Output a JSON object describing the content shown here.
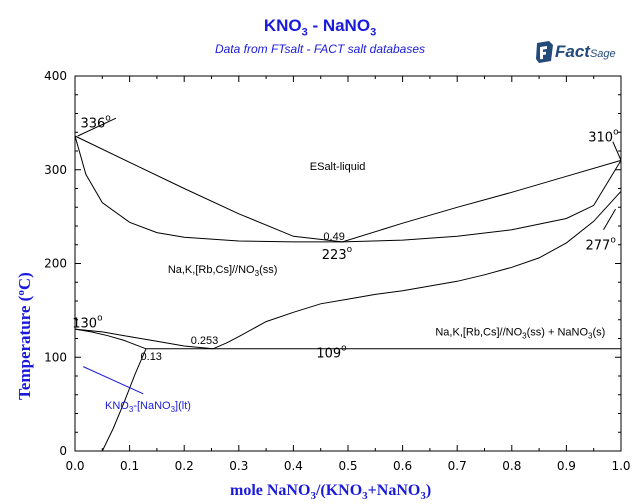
{
  "header": {
    "title": "KNO3 - NaNO3",
    "subtitle": "Data from FTsalt - FACT salt databases",
    "logo": "FactSage"
  },
  "chart_data": {
    "type": "line",
    "title": "KNO3 - NaNO3",
    "subtitle": "Data from FTsalt - FACT salt databases",
    "xlabel": "mole NaNO3/(KNO3+NaNO3)",
    "ylabel": "Temperature (°C)",
    "xlim": [
      0,
      1
    ],
    "ylim": [
      0,
      400
    ],
    "xticks": [
      "0.0",
      "0.1",
      "0.2",
      "0.3",
      "0.4",
      "0.5",
      "0.6",
      "0.7",
      "0.8",
      "0.9",
      "1.0"
    ],
    "yticks": [
      "0",
      "100",
      "200",
      "300",
      "400"
    ],
    "series": [
      {
        "x": [
          0,
          0.1,
          0.2,
          0.3,
          0.4,
          0.49,
          0.6,
          0.7,
          0.8,
          0.9,
          1.0
        ],
        "y": [
          336,
          308,
          280,
          253,
          229,
          223,
          243,
          260,
          276,
          293,
          310
        ]
      },
      {
        "x": [
          0,
          0.02,
          0.05,
          0.1,
          0.15,
          0.2,
          0.3,
          0.4,
          0.49,
          0.6,
          0.7,
          0.8,
          0.9,
          0.95,
          1.0
        ],
        "y": [
          336,
          295,
          265,
          244,
          233,
          228,
          224,
          223,
          223,
          225,
          229,
          236,
          248,
          262,
          310
        ]
      },
      {
        "x": [
          0.253,
          0.28,
          0.3,
          0.35,
          0.4,
          0.45,
          0.5,
          0.55,
          0.6,
          0.65,
          0.7,
          0.75,
          0.8,
          0.85,
          0.9,
          0.95,
          1.0
        ],
        "y": [
          109,
          116,
          122,
          138,
          148,
          157,
          162,
          167,
          171,
          176,
          181,
          188,
          196,
          206,
          222,
          245,
          277
        ]
      },
      {
        "x": [
          0,
          0.05,
          0.1,
          0.15,
          0.2,
          0.253
        ],
        "y": [
          130,
          127,
          122,
          117,
          112,
          109
        ]
      },
      {
        "x": [
          0,
          0.03,
          0.06,
          0.09,
          0.13
        ],
        "y": [
          130,
          127,
          123,
          118,
          109
        ]
      },
      {
        "x": [
          0.05,
          0.07,
          0.09,
          0.11,
          0.13
        ],
        "y": [
          0,
          24,
          52,
          82,
          109
        ]
      },
      {
        "x": [
          0.13,
          1.0
        ],
        "y": [
          109,
          109
        ]
      }
    ],
    "annotations": [
      {
        "text": "336",
        "degree": true,
        "x": 0.01,
        "y": 345
      },
      {
        "text": "310",
        "degree": true,
        "x": 0.94,
        "y": 330
      },
      {
        "text": "ESalt-liquid",
        "degree": false,
        "x": 0.43,
        "y": 300
      },
      {
        "text": "0.49",
        "degree": false,
        "x": 0.455,
        "y": 225
      },
      {
        "text": "223",
        "degree": true,
        "x": 0.452,
        "y": 205
      },
      {
        "text": "277",
        "degree": true,
        "x": 0.935,
        "y": 215
      },
      {
        "text": "Na,K,[Rb,Cs]//NO3(ss)",
        "degree": false,
        "x": 0.17,
        "y": 190
      },
      {
        "text": "130",
        "degree": true,
        "x": -0.005,
        "y": 132
      },
      {
        "text": "0.253",
        "degree": false,
        "x": 0.212,
        "y": 114
      },
      {
        "text": "109",
        "degree": true,
        "x": 0.442,
        "y": 100
      },
      {
        "text": "Na,K,[Rb,Cs]//NO3(ss) + NaNO3(s)",
        "degree": false,
        "x": 0.66,
        "y": 123
      },
      {
        "text": "0.13",
        "degree": false,
        "x": 0.12,
        "y": 97
      }
    ],
    "blue_label": {
      "text": "KNO3-[NaNO3](lt)",
      "x": 0.075,
      "y": 45
    },
    "colors": {
      "curves": "#000000",
      "titles": "#1a1adc"
    }
  }
}
